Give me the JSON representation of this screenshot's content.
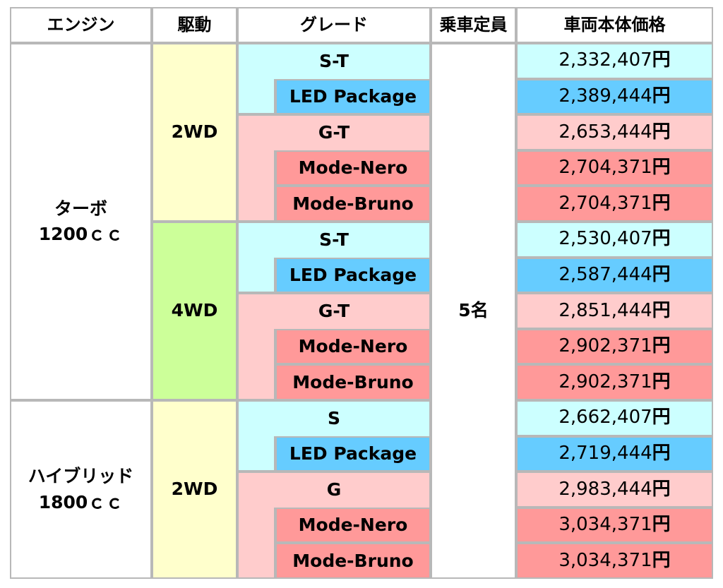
{
  "header": {
    "engine": "エンジン",
    "drive": "駆動",
    "grade": "グレード",
    "capacity": "乗車定員",
    "price": "車両本体価格"
  },
  "capacity": "5名",
  "currency_suffix": "円",
  "colors": {
    "border": "#b8b8b8",
    "drive_2wd": "#ffffcc",
    "drive_4wd": "#ccff99",
    "s_group": "#ccffff",
    "led_package": "#66ccff",
    "g_group": "#ffcccc",
    "mode_variant": "#ff9999",
    "plain": "#ffffff"
  },
  "groups": [
    {
      "engine": "ターボ\n1200ｃｃ",
      "drives": [
        {
          "drive": "2WD",
          "rows": [
            {
              "grade": "S-T",
              "price": "2,332,407"
            },
            {
              "grade": "LED Package",
              "price": "2,389,444"
            },
            {
              "grade": "G-T",
              "price": "2,653,444"
            },
            {
              "grade": "Mode-Nero",
              "price": "2,704,371"
            },
            {
              "grade": "Mode-Bruno",
              "price": "2,704,371"
            }
          ]
        },
        {
          "drive": "4WD",
          "rows": [
            {
              "grade": "S-T",
              "price": "2,530,407"
            },
            {
              "grade": "LED Package",
              "price": "2,587,444"
            },
            {
              "grade": "G-T",
              "price": "2,851,444"
            },
            {
              "grade": "Mode-Nero",
              "price": "2,902,371"
            },
            {
              "grade": "Mode-Bruno",
              "price": "2,902,371"
            }
          ]
        }
      ]
    },
    {
      "engine": "ハイブリッド\n1800ｃｃ",
      "drives": [
        {
          "drive": "2WD",
          "rows": [
            {
              "grade": "S",
              "price": "2,662,407"
            },
            {
              "grade": "LED Package",
              "price": "2,719,444"
            },
            {
              "grade": "G",
              "price": "2,983,444"
            },
            {
              "grade": "Mode-Nero",
              "price": "3,034,371"
            },
            {
              "grade": "Mode-Bruno",
              "price": "3,034,371"
            }
          ]
        }
      ]
    }
  ]
}
